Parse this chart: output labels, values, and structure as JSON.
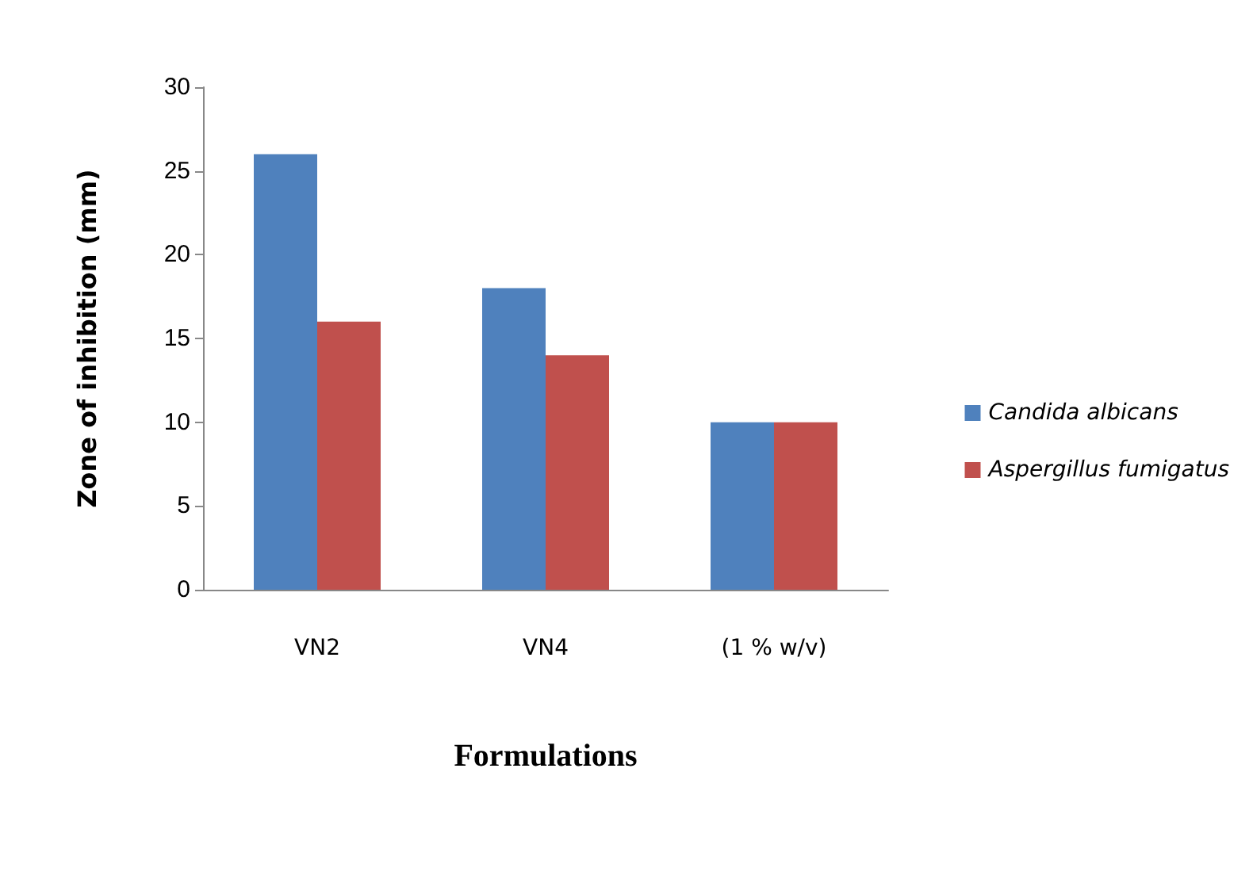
{
  "chart_data": {
    "type": "bar",
    "xlabel": "Formulations",
    "ylabel": "Zone of inhibition (mm)",
    "categories": [
      "VN2",
      "VN4",
      "(1 % w/v)"
    ],
    "series": [
      {
        "name": "Candida albicans",
        "color": "#4f81bd",
        "values": [
          26,
          18,
          10
        ]
      },
      {
        "name": "Aspergillus fumigatus",
        "color": "#c0504d",
        "values": [
          16,
          14,
          10
        ]
      }
    ],
    "ylim": [
      0,
      30
    ],
    "yticks": [
      0,
      5,
      10,
      15,
      20,
      25,
      30
    ],
    "grid": false,
    "legend": "right"
  }
}
